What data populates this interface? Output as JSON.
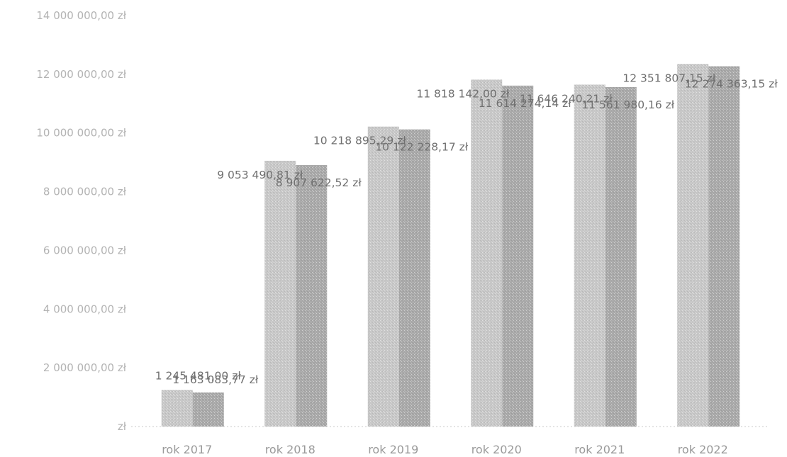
{
  "chart_data": {
    "type": "bar",
    "categories": [
      "rok 2017",
      "rok 2018",
      "rok 2019",
      "rok 2020",
      "rok 2021",
      "rok 2022"
    ],
    "series": [
      {
        "values": [
          1245481.0,
          9053490.81,
          10218895.29,
          11818142.0,
          11646240.21,
          12351807.15
        ],
        "labels": [
          "1 245 481,00 zł",
          "9 053 490,81 zł",
          "10 218 895,29 zł",
          "11 818 142,00 zł",
          "11 646 240,21 zł",
          "12 351 807,15 zł"
        ],
        "color": "#c8c8c8"
      },
      {
        "values": [
          1163083.77,
          8907622.52,
          10122228.17,
          11614274.14,
          11561980.16,
          12274363.15
        ],
        "labels": [
          "1 163 083,77 zł",
          "8 907 622,52 zł",
          "10 122 228,17 zł",
          "11 614 274,14 zł",
          "11 561 980,16 zł",
          "12 274 363,15 zł"
        ],
        "color": "#a9a9a9"
      }
    ],
    "yticks": [
      0,
      2000000,
      4000000,
      6000000,
      8000000,
      10000000,
      12000000,
      14000000
    ],
    "ytick_labels": [
      "zł",
      "2 000 000,00 zł",
      "4 000 000,00 zł",
      "6 000 000,00 zł",
      "8 000 000,00 zł",
      "10 000 000,00 zł",
      "12 000 000,00 zł",
      "14 000 000,00 zł"
    ],
    "ylim": [
      0,
      14000000
    ],
    "grid": false,
    "legend": "none"
  }
}
